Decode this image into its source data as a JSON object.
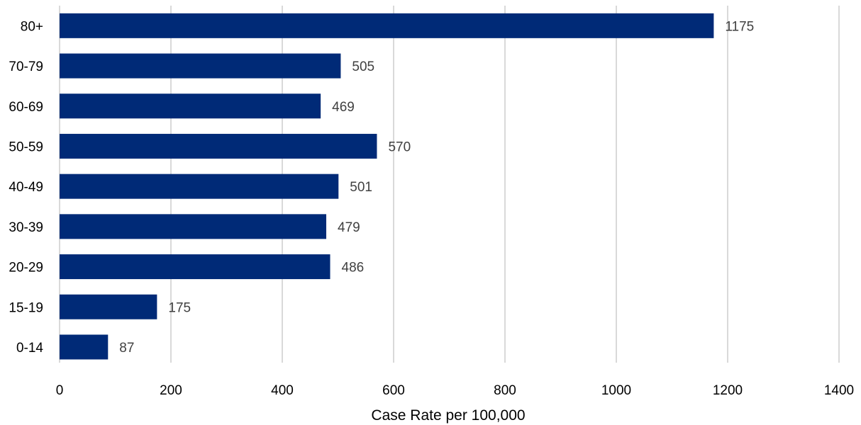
{
  "chart_data": {
    "type": "bar",
    "orientation": "horizontal",
    "title": "",
    "xlabel": "Case Rate per 100,000",
    "ylabel": "",
    "categories": [
      "80+",
      "70-79",
      "60-69",
      "50-59",
      "40-49",
      "30-39",
      "20-29",
      "15-19",
      "0-14"
    ],
    "values": [
      1175,
      505,
      469,
      570,
      501,
      479,
      486,
      175,
      87
    ],
    "data_labels": [
      "1175",
      "505",
      "469",
      "570",
      "501",
      "479",
      "486",
      "175",
      "87"
    ],
    "xlim": [
      0,
      1400
    ],
    "x_ticks": [
      0,
      200,
      400,
      600,
      800,
      1000,
      1200,
      1400
    ],
    "x_tick_labels": [
      "0",
      "200",
      "400",
      "600",
      "800",
      "1000",
      "1200",
      "1400"
    ],
    "grid": "vertical",
    "legend": "none",
    "colors": {
      "bar": "#002A77",
      "grid": "#D9D9D9",
      "data_label": "#404040",
      "text": "#000000"
    }
  }
}
